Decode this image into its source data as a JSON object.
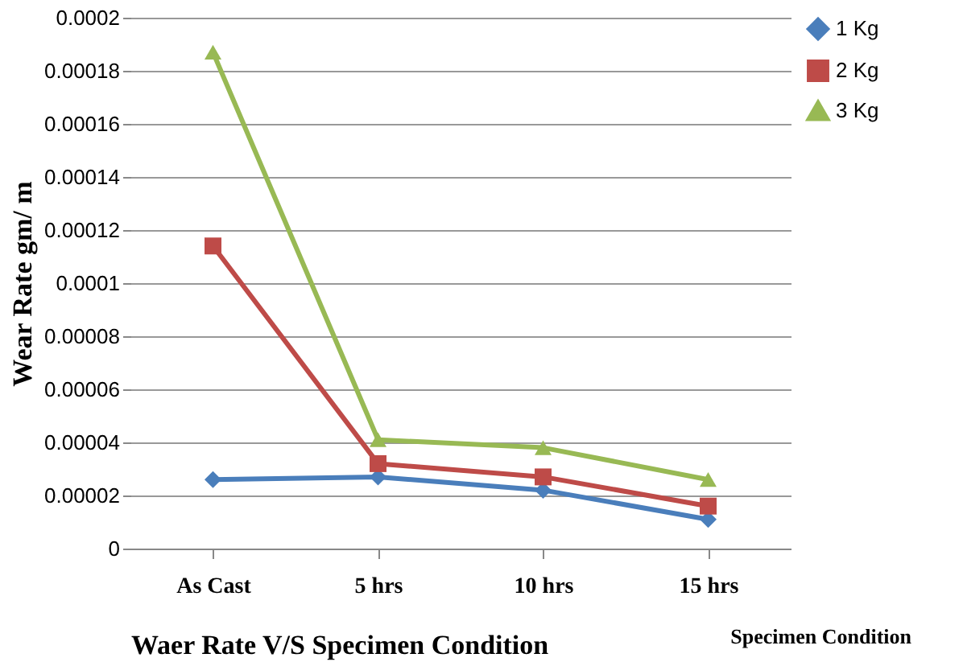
{
  "chart_data": {
    "type": "line",
    "xlabel": "Waer Rate V/S  Specimen Condition",
    "ylabel": "Wear Rate  gm/ m",
    "categories": [
      "As Cast",
      "5 hrs",
      "10 hrs",
      "15 hrs"
    ],
    "series": [
      {
        "name": "1 Kg",
        "color": "#4a7ebb",
        "marker": "diamond",
        "values": [
          2.6e-05,
          2.7e-05,
          2.2e-05,
          1.1e-05
        ]
      },
      {
        "name": "2 Kg",
        "color": "#be4b48",
        "marker": "square",
        "values": [
          0.000114,
          3.2e-05,
          2.7e-05,
          1.6e-05
        ]
      },
      {
        "name": "3 Kg",
        "color": "#98b954",
        "marker": "triangle",
        "values": [
          0.000187,
          4.1e-05,
          3.8e-05,
          2.6e-05
        ]
      }
    ],
    "ylim": [
      0,
      0.0002
    ],
    "yticks": [
      0,
      {
        "value": 2e-05,
        "label": "0.00002"
      },
      {
        "value": 4e-05,
        "label": "0.00004"
      },
      {
        "value": 6e-05,
        "label": "0.00006"
      },
      {
        "value": 8e-05,
        "label": "0.00008"
      },
      0.0001,
      0.00012,
      0.00014,
      0.00016,
      0.00018,
      0.0002
    ],
    "grid": "y",
    "legend": "right",
    "line_style": "solid",
    "annotations": [
      "Specimen Condition"
    ]
  }
}
